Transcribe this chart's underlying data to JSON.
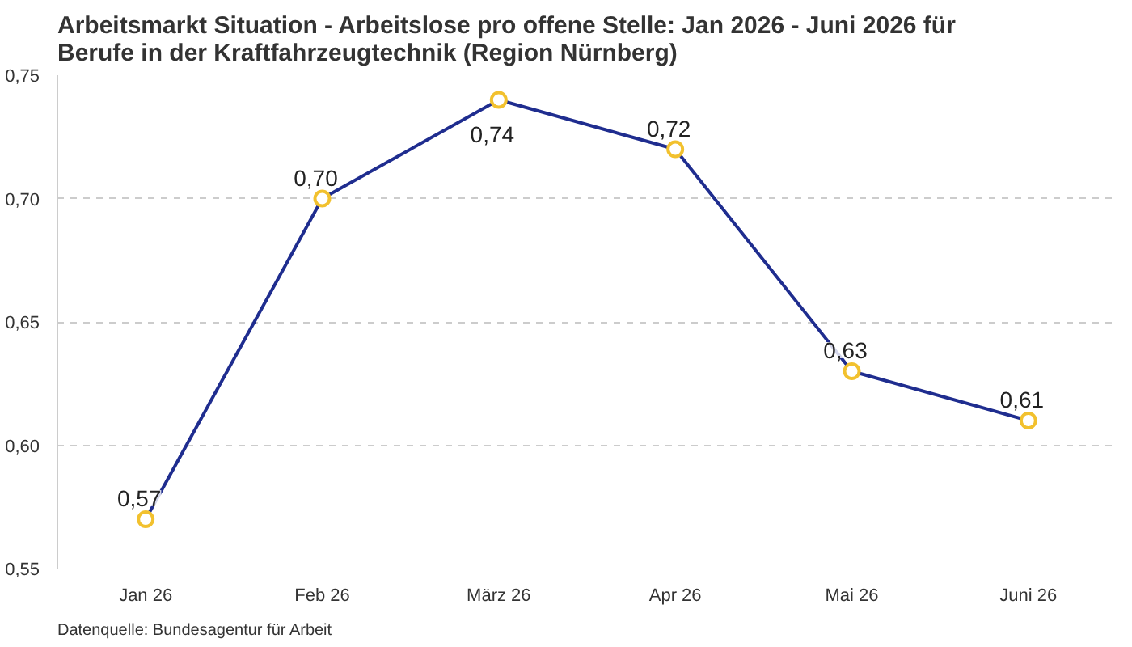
{
  "chart_data": {
    "type": "line",
    "title": "Arbeitsmarkt Situation - Arbeitslose pro offene Stelle: Jan 2026 - Juni 2026 für\nBerufe in der Kraftfahrzeugtechnik (Region Nürnberg)",
    "categories": [
      "Jan 26",
      "Feb 26",
      "März 26",
      "Apr 26",
      "Mai 26",
      "Juni 26"
    ],
    "series": [
      {
        "color": "#1f2d8f",
        "values": [
          0.57,
          0.7,
          0.74,
          0.72,
          0.63,
          0.61
        ],
        "value_labels": [
          "0,57",
          "0,70",
          "0,74",
          "0,72",
          "0,63",
          "0,61"
        ]
      }
    ],
    "ylim": [
      0.55,
      0.75
    ],
    "yticks": [
      {
        "value": 0.55,
        "label": "0,55"
      },
      {
        "value": 0.6,
        "label": "0,60"
      },
      {
        "value": 0.65,
        "label": "0,65"
      },
      {
        "value": 0.7,
        "label": "0,70"
      },
      {
        "value": 0.75,
        "label": "0,75"
      }
    ],
    "grid": "y",
    "marker": "circle",
    "line_style": "solid",
    "annotations": [
      "Datenquelle: Bundesagentur für Arbeit"
    ]
  }
}
